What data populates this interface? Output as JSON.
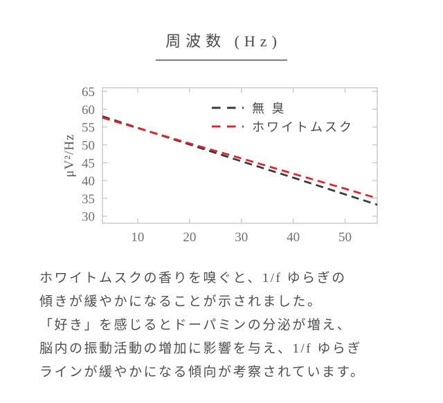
{
  "title": {
    "text": "周波数 (Hz)"
  },
  "chart_data": {
    "type": "line",
    "title": "周波数 (Hz)",
    "xlabel": "周波数 (Hz)",
    "ylabel": "μV²/Hz",
    "xlim": [
      3.2,
      56.2
    ],
    "ylim": [
      28,
      66
    ],
    "x_ticks": [
      10,
      20,
      30,
      40,
      50
    ],
    "y_ticks": [
      30,
      35,
      40,
      45,
      50,
      55,
      60,
      65
    ],
    "grid": false,
    "legend_position": "upper-right-inside",
    "line_style": "dashed",
    "x": [
      3.2,
      10,
      20,
      30,
      40,
      50,
      56.2
    ],
    "series": [
      {
        "name": "無 臭",
        "color": "#3a3a3e",
        "values": [
          58.0,
          54.8,
          50.1,
          45.4,
          40.8,
          36.1,
          33.2
        ]
      },
      {
        "name": "ホワイトムスク",
        "color": "#d9282e",
        "values": [
          57.6,
          54.7,
          50.4,
          46.2,
          41.9,
          37.7,
          35.0
        ]
      }
    ],
    "axis_color": "#c8c8c8",
    "tick_label_color": "#707070"
  },
  "caption": {
    "lines": [
      "ホワイトムスクの香りを嗅ぐと、1/f ゆらぎの",
      "傾きが緩やかになることが示されました。",
      "「好き」を感じるとドーパミンの分泌が増え、",
      "脳内の振動活動の増加に影響を与え、1/f ゆらぎ",
      "ラインが緩やかになる傾向が考察されています。"
    ]
  },
  "colors": {
    "odorless_line": "#3a3a3e",
    "white_musk_line": "#d9282e",
    "axis_box": "#c8c8c8",
    "body_text": "#4f4f4f"
  }
}
